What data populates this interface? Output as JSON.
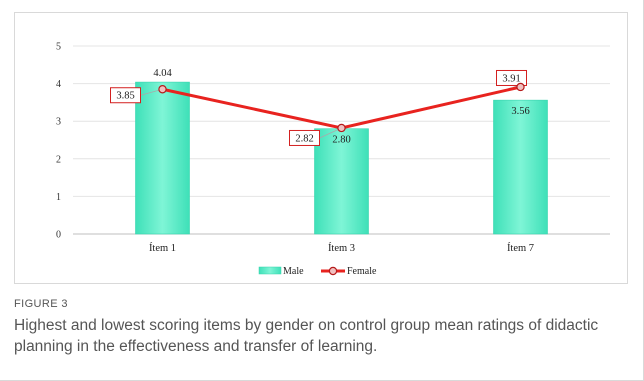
{
  "chart_data": {
    "type": "bar",
    "categories": [
      "Ítem 1",
      "Ítem 3",
      "Ítem 7"
    ],
    "series": [
      {
        "name": "Male",
        "type": "bar",
        "values": [
          4.04,
          2.8,
          3.56
        ],
        "labels": [
          "4.04",
          "2.80",
          "3.56"
        ],
        "color": "#66f0cc"
      },
      {
        "name": "Female",
        "type": "line",
        "values": [
          3.85,
          2.82,
          3.91
        ],
        "labels": [
          "3.85",
          "2.82",
          "3.91"
        ],
        "color": "#e8231f"
      }
    ],
    "ylim": [
      0,
      5
    ],
    "yticks": [
      "0",
      "1",
      "2",
      "3",
      "4",
      "5"
    ],
    "grid": true,
    "legend": "bottom"
  },
  "figure": {
    "label": "FIGURE 3",
    "caption": "Highest and lowest scoring items by gender on control group mean ratings of didactic planning in the effectiveness and transfer of learning."
  }
}
